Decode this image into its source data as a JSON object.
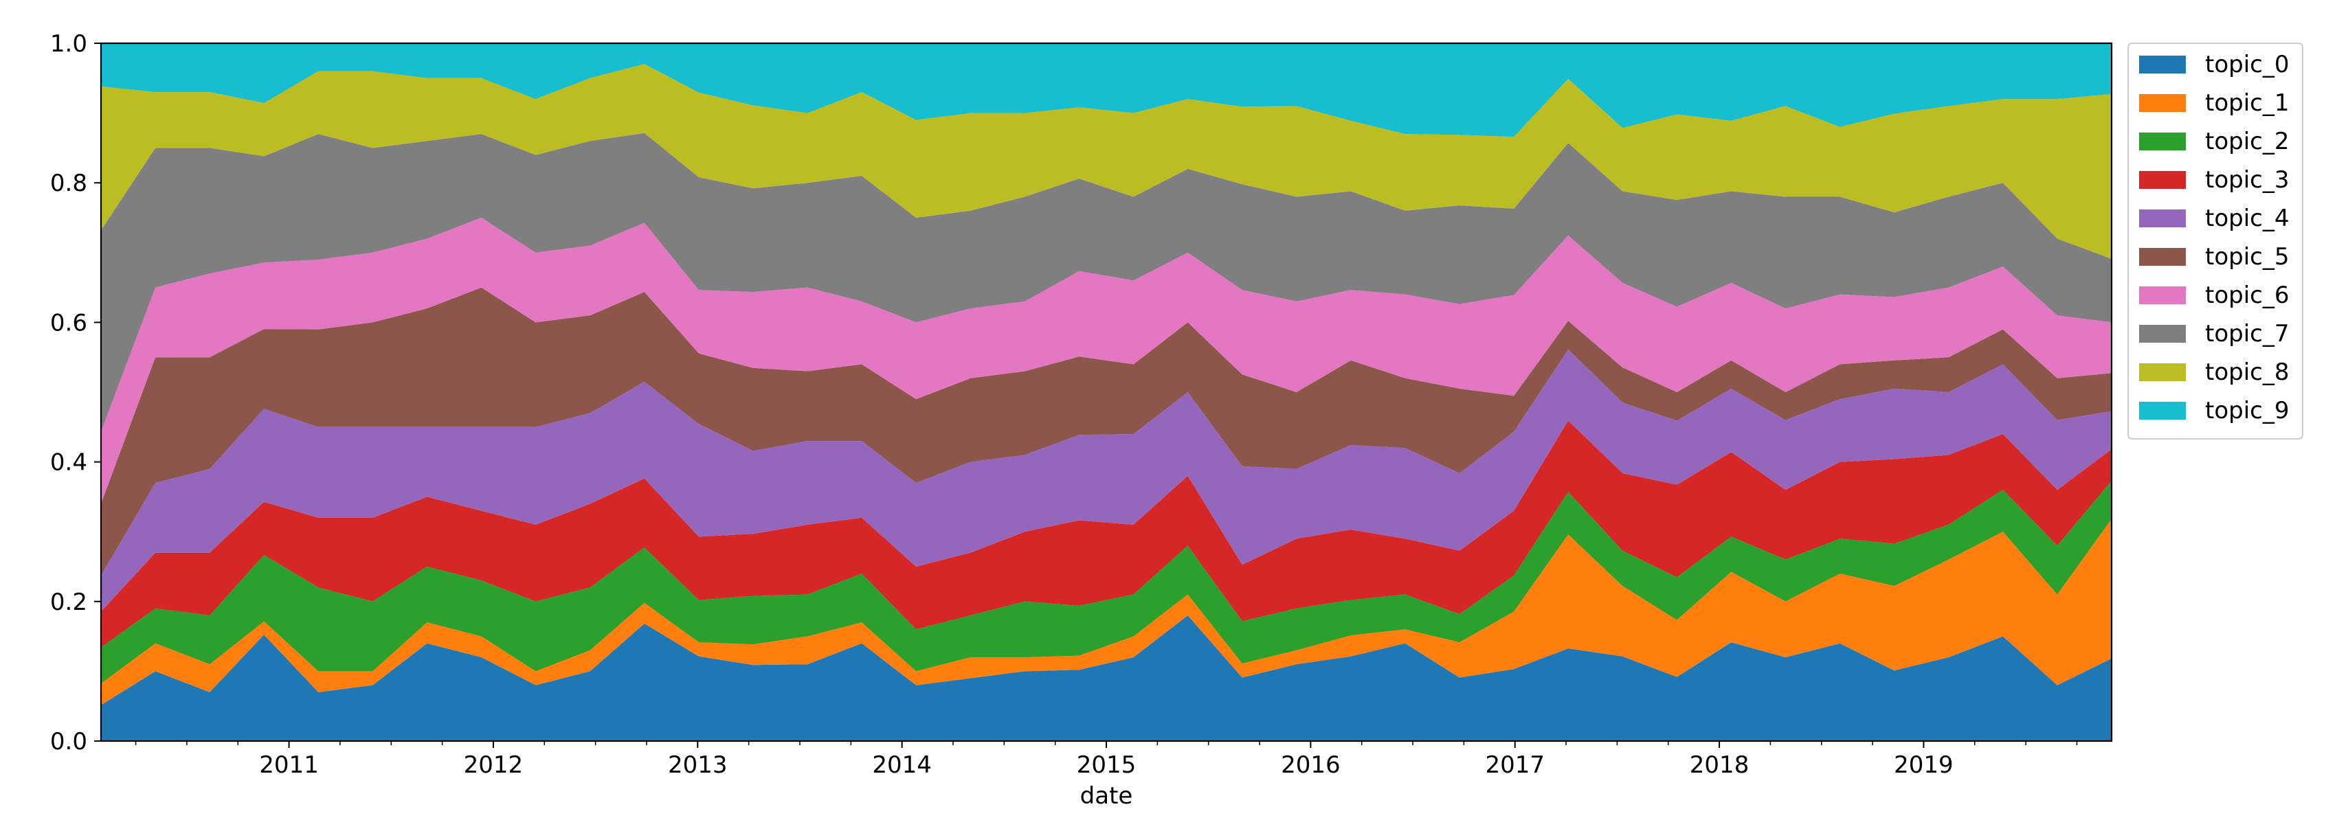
{
  "chart_data": {
    "type": "area",
    "stacked": true,
    "normalized": true,
    "title": "",
    "xlabel": "date",
    "ylabel": "",
    "ylim": [
      0,
      1
    ],
    "yticks": [
      0.0,
      0.2,
      0.4,
      0.6,
      0.8,
      1.0
    ],
    "ytick_labels": [
      "0.0",
      "0.2",
      "0.4",
      "0.6",
      "0.8",
      "1.0"
    ],
    "x_start": 2010.08,
    "x_end": 2019.92,
    "xtick_years": [
      "2011",
      "2012",
      "2013",
      "2014",
      "2015",
      "2016",
      "2017",
      "2018",
      "2019"
    ],
    "legend_position": "upper-right-outside",
    "series": [
      {
        "name": "topic_0",
        "color": "#1f77b4",
        "values": [
          0.05,
          0.1,
          0.07,
          0.16,
          0.07,
          0.08,
          0.14,
          0.12,
          0.08,
          0.1,
          0.17,
          0.12,
          0.11,
          0.11,
          0.14,
          0.08,
          0.09,
          0.1,
          0.1,
          0.12,
          0.18,
          0.09,
          0.11,
          0.12,
          0.14,
          0.09,
          0.1,
          0.13,
          0.12,
          0.09,
          0.14,
          0.12,
          0.14,
          0.1,
          0.12,
          0.15,
          0.08,
          0.13
        ]
      },
      {
        "name": "topic_1",
        "color": "#ff7f0e",
        "values": [
          0.03,
          0.04,
          0.04,
          0.02,
          0.03,
          0.02,
          0.03,
          0.03,
          0.02,
          0.03,
          0.03,
          0.02,
          0.03,
          0.04,
          0.03,
          0.02,
          0.03,
          0.02,
          0.02,
          0.03,
          0.03,
          0.02,
          0.02,
          0.03,
          0.02,
          0.05,
          0.08,
          0.16,
          0.1,
          0.08,
          0.1,
          0.08,
          0.1,
          0.12,
          0.14,
          0.15,
          0.13,
          0.22
        ]
      },
      {
        "name": "topic_2",
        "color": "#2ca02c",
        "values": [
          0.05,
          0.05,
          0.07,
          0.1,
          0.12,
          0.1,
          0.08,
          0.08,
          0.1,
          0.09,
          0.08,
          0.06,
          0.07,
          0.06,
          0.07,
          0.06,
          0.06,
          0.08,
          0.07,
          0.06,
          0.07,
          0.06,
          0.06,
          0.05,
          0.05,
          0.04,
          0.05,
          0.06,
          0.05,
          0.06,
          0.05,
          0.06,
          0.05,
          0.06,
          0.05,
          0.06,
          0.07,
          0.06
        ]
      },
      {
        "name": "topic_3",
        "color": "#d62728",
        "values": [
          0.05,
          0.08,
          0.09,
          0.08,
          0.1,
          0.12,
          0.1,
          0.1,
          0.11,
          0.12,
          0.1,
          0.09,
          0.09,
          0.1,
          0.08,
          0.09,
          0.09,
          0.1,
          0.12,
          0.1,
          0.1,
          0.08,
          0.1,
          0.1,
          0.08,
          0.09,
          0.09,
          0.1,
          0.11,
          0.13,
          0.12,
          0.1,
          0.11,
          0.12,
          0.1,
          0.08,
          0.08,
          0.05
        ]
      },
      {
        "name": "topic_4",
        "color": "#9467bd",
        "values": [
          0.05,
          0.1,
          0.12,
          0.14,
          0.13,
          0.13,
          0.1,
          0.12,
          0.14,
          0.13,
          0.14,
          0.16,
          0.12,
          0.12,
          0.11,
          0.12,
          0.13,
          0.11,
          0.12,
          0.13,
          0.12,
          0.14,
          0.1,
          0.12,
          0.13,
          0.11,
          0.11,
          0.1,
          0.1,
          0.09,
          0.09,
          0.1,
          0.09,
          0.1,
          0.09,
          0.1,
          0.1,
          0.06
        ]
      },
      {
        "name": "topic_5",
        "color": "#8c564b",
        "values": [
          0.1,
          0.18,
          0.16,
          0.12,
          0.14,
          0.15,
          0.17,
          0.2,
          0.15,
          0.14,
          0.13,
          0.1,
          0.12,
          0.1,
          0.11,
          0.12,
          0.12,
          0.12,
          0.11,
          0.1,
          0.1,
          0.13,
          0.11,
          0.12,
          0.1,
          0.12,
          0.05,
          0.04,
          0.05,
          0.04,
          0.04,
          0.04,
          0.05,
          0.04,
          0.05,
          0.05,
          0.06,
          0.06
        ]
      },
      {
        "name": "topic_6",
        "color": "#e377c2",
        "values": [
          0.1,
          0.1,
          0.12,
          0.1,
          0.1,
          0.1,
          0.1,
          0.1,
          0.1,
          0.1,
          0.1,
          0.09,
          0.11,
          0.12,
          0.09,
          0.11,
          0.1,
          0.1,
          0.12,
          0.12,
          0.1,
          0.12,
          0.13,
          0.1,
          0.12,
          0.12,
          0.14,
          0.12,
          0.12,
          0.12,
          0.11,
          0.12,
          0.1,
          0.09,
          0.1,
          0.09,
          0.09,
          0.08
        ]
      },
      {
        "name": "topic_7",
        "color": "#7f7f7f",
        "values": [
          0.28,
          0.2,
          0.18,
          0.16,
          0.18,
          0.15,
          0.14,
          0.12,
          0.14,
          0.15,
          0.13,
          0.16,
          0.15,
          0.15,
          0.18,
          0.15,
          0.14,
          0.15,
          0.13,
          0.12,
          0.12,
          0.15,
          0.15,
          0.14,
          0.12,
          0.14,
          0.12,
          0.13,
          0.13,
          0.15,
          0.13,
          0.16,
          0.14,
          0.12,
          0.13,
          0.12,
          0.11,
          0.1
        ]
      },
      {
        "name": "topic_8",
        "color": "#bcbd22",
        "values": [
          0.2,
          0.08,
          0.08,
          0.08,
          0.09,
          0.11,
          0.09,
          0.08,
          0.08,
          0.09,
          0.1,
          0.12,
          0.12,
          0.1,
          0.12,
          0.14,
          0.14,
          0.12,
          0.1,
          0.12,
          0.1,
          0.11,
          0.13,
          0.1,
          0.11,
          0.1,
          0.1,
          0.09,
          0.09,
          0.12,
          0.1,
          0.13,
          0.1,
          0.14,
          0.13,
          0.12,
          0.2,
          0.26
        ]
      },
      {
        "name": "topic_9",
        "color": "#17becf",
        "values": [
          0.06,
          0.07,
          0.07,
          0.09,
          0.04,
          0.04,
          0.05,
          0.05,
          0.08,
          0.05,
          0.03,
          0.07,
          0.09,
          0.1,
          0.07,
          0.11,
          0.1,
          0.1,
          0.09,
          0.1,
          0.08,
          0.09,
          0.09,
          0.11,
          0.13,
          0.13,
          0.13,
          0.05,
          0.12,
          0.1,
          0.11,
          0.09,
          0.12,
          0.1,
          0.09,
          0.08,
          0.08,
          0.08
        ]
      }
    ]
  }
}
